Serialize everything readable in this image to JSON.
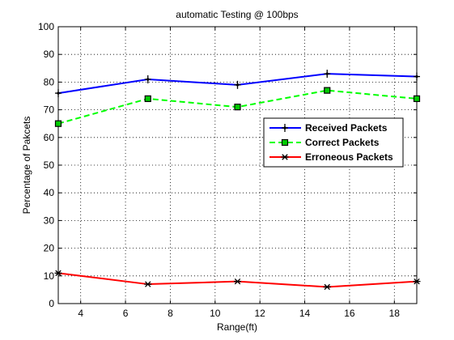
{
  "chart_data": {
    "type": "line",
    "title": "automatic Testing @ 100bps",
    "xlabel": "Range(ft)",
    "ylabel": "Percentage of Pakcets",
    "xlim": [
      3,
      19
    ],
    "ylim": [
      0,
      100
    ],
    "xticks": [
      4,
      6,
      8,
      10,
      12,
      14,
      16,
      18
    ],
    "yticks": [
      0,
      10,
      20,
      30,
      40,
      50,
      60,
      70,
      80,
      90,
      100
    ],
    "grid": true,
    "legend_position": "right",
    "x": [
      3,
      7,
      11,
      15,
      19
    ],
    "series": [
      {
        "name": "Received Packets",
        "values": [
          76,
          81,
          79,
          83,
          82
        ],
        "color": "#0000ff",
        "marker": "plus-star",
        "line_style": "solid"
      },
      {
        "name": "Correct Packets",
        "values": [
          65,
          74,
          71,
          77,
          74
        ],
        "color": "#00ff00",
        "marker_fill": "#00cc00",
        "marker": "square",
        "line_style": "dashed"
      },
      {
        "name": "Erroneous Packets",
        "values": [
          11,
          7,
          8,
          6,
          8
        ],
        "color": "#ff0000",
        "marker": "asterisk",
        "line_style": "solid"
      }
    ]
  }
}
